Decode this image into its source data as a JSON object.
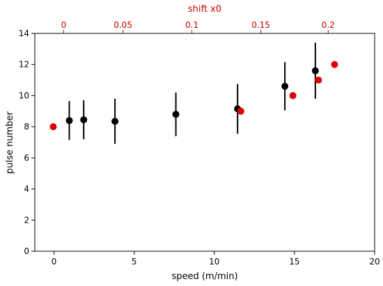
{
  "chart_data": {
    "type": "scatter",
    "xlabel": "speed (m/min)",
    "ylabel": "pulse number",
    "xlim": [
      -1.2,
      20
    ],
    "ylim": [
      0,
      14
    ],
    "x_ticks": [
      0,
      5,
      10,
      15,
      20
    ],
    "y_ticks": [
      0,
      2,
      4,
      6,
      8,
      10,
      12,
      14
    ],
    "top_axis": {
      "label": "shift x0",
      "color": "#cc0000",
      "tick_values": [
        0,
        0.05,
        0.1,
        0.15,
        0.2
      ],
      "tick_labels": [
        "0",
        "0.05",
        "0.1",
        "0.15",
        "0.2"
      ],
      "tick_positions_on_bottom_scale": [
        0.6,
        4.3,
        8.6,
        12.9,
        17.1
      ]
    },
    "grid": false,
    "legend": "none",
    "series": [
      {
        "color": "#000000",
        "x": [
          0.95,
          1.85,
          3.8,
          7.6,
          11.45,
          14.4,
          16.3
        ],
        "y": [
          8.4,
          8.45,
          8.35,
          8.8,
          9.15,
          10.6,
          11.6
        ],
        "yerr": [
          1.25,
          1.25,
          1.45,
          1.4,
          1.6,
          1.55,
          1.8
        ]
      },
      {
        "color": "#dd0000",
        "x": [
          -0.05,
          11.65,
          14.9,
          16.5,
          17.5
        ],
        "y": [
          8.0,
          9.0,
          10.0,
          11.0,
          12.0
        ]
      }
    ]
  }
}
